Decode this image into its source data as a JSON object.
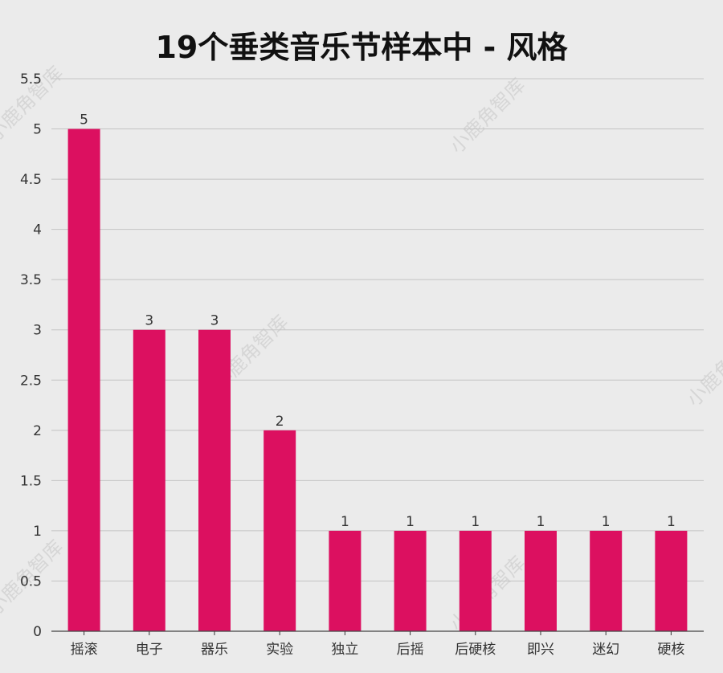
{
  "chart_data": {
    "type": "bar",
    "title": "19个垂类音乐节样本中 - 风格",
    "xlabel": "",
    "ylabel": "",
    "categories": [
      "摇滚",
      "电子",
      "器乐",
      "实验",
      "独立",
      "后摇",
      "后硬核",
      "即兴",
      "迷幻",
      "硬核"
    ],
    "values": [
      5,
      3,
      3,
      2,
      1,
      1,
      1,
      1,
      1,
      1
    ],
    "ylim": [
      0,
      5.5
    ],
    "yticks": [
      "0",
      "0.5",
      "1",
      "1.5",
      "2",
      "2.5",
      "3",
      "3.5",
      "4",
      "4.5",
      "5",
      "5.5"
    ],
    "bar_color": "#dc1060",
    "grid": true,
    "legend": "none"
  },
  "watermark_text": "小鹿角智库"
}
